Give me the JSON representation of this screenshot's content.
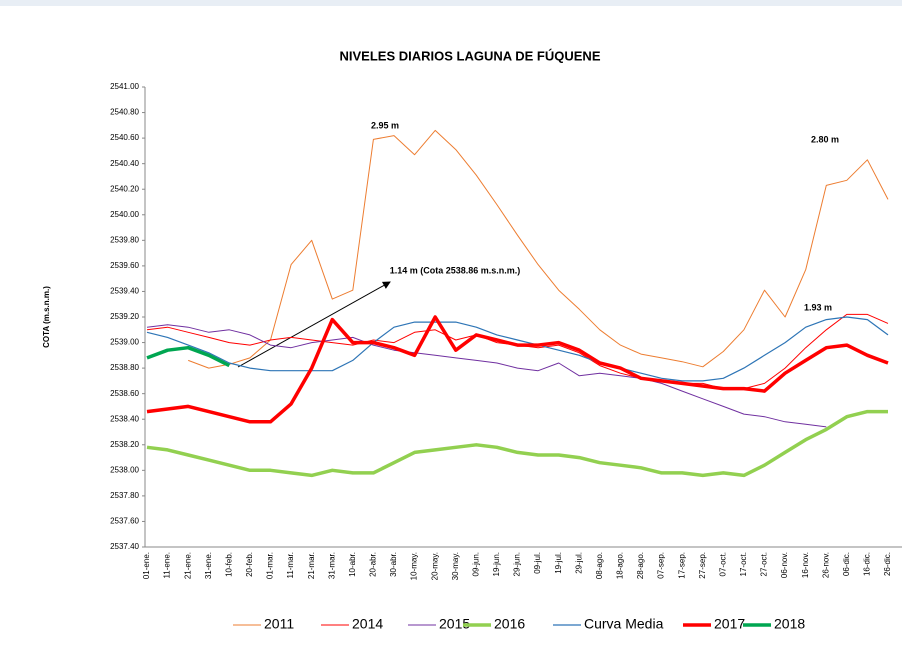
{
  "chart_data": {
    "type": "line",
    "title": "NIVELES DIARIOS LAGUNA DE FÚQUENE",
    "y_label": "COTA (m.s.n.m.)",
    "categories": [
      "01-ene.",
      "11-ene.",
      "21-ene.",
      "31-ene.",
      "10-feb.",
      "20-feb.",
      "01-mar.",
      "11-mar.",
      "21-mar.",
      "31-mar.",
      "10-abr.",
      "20-abr.",
      "30-abr.",
      "10-may.",
      "20-may.",
      "30-may.",
      "09-jun.",
      "19-jun.",
      "29-jun.",
      "09-jul.",
      "19-jul.",
      "29-jul.",
      "08-ago.",
      "18-ago.",
      "28-ago.",
      "07-sep.",
      "17-sep.",
      "27-sep.",
      "07-oct.",
      "17-oct.",
      "27-oct.",
      "06-nov.",
      "16-nov.",
      "26-nov.",
      "06-dic.",
      "16-dic.",
      "26-dic."
    ],
    "ylim": [
      2537.4,
      2541.0
    ],
    "yticks": [
      {
        "value": 2537.4,
        "label": "2537.40"
      },
      {
        "value": 2537.6,
        "label": "2537.60"
      },
      {
        "value": 2537.8,
        "label": "2537.80"
      },
      {
        "value": 2538.0,
        "label": "2538.00"
      },
      {
        "value": 2538.2,
        "label": "2538.20"
      },
      {
        "value": 2538.4,
        "label": "2538.40"
      },
      {
        "value": 2538.6,
        "label": "2538.60"
      },
      {
        "value": 2538.8,
        "label": "2538.80"
      },
      {
        "value": 2539.0,
        "label": "2539.00"
      },
      {
        "value": 2539.2,
        "label": "2539.20"
      },
      {
        "value": 2539.4,
        "label": "2539.40"
      },
      {
        "value": 2539.6,
        "label": "2539.60"
      },
      {
        "value": 2539.8,
        "label": "2539.80"
      },
      {
        "value": 2540.0,
        "label": "2540.00"
      },
      {
        "value": 2540.2,
        "label": "2540.20"
      },
      {
        "value": 2540.4,
        "label": "2540.40"
      },
      {
        "value": 2540.6,
        "label": "2540.60"
      },
      {
        "value": 2540.8,
        "label": "2540.80"
      },
      {
        "value": 2541.0,
        "label": "2541.00"
      }
    ],
    "annotations": [
      "2.95 m",
      "1.14 m (Cota 2538.86 m.s.n.m.)",
      "2.80 m",
      "1.93 m"
    ],
    "series": [
      {
        "name": "2011",
        "color": "#ED7D31",
        "values": [
          null,
          null,
          2538.86,
          2538.8,
          2538.83,
          2538.88,
          2539.02,
          2539.61,
          2539.8,
          2539.34,
          2539.41,
          2540.59,
          2540.62,
          2540.47,
          2540.66,
          2540.51,
          2540.31,
          2540.08,
          2539.84,
          2539.61,
          2539.41,
          2539.26,
          2539.1,
          2538.98,
          2538.91,
          2538.88,
          2538.85,
          2538.81,
          2538.93,
          2539.1,
          2539.41,
          2539.2,
          2539.57,
          2540.23,
          2540.27,
          2540.43,
          2540.12
        ]
      },
      {
        "name": "2014",
        "color": "#FF0000",
        "values": [
          2539.1,
          2539.12,
          2539.08,
          2539.04,
          2539.0,
          2538.98,
          2539.02,
          2539.04,
          2539.02,
          2539.0,
          2538.98,
          2539.02,
          2539.0,
          2539.08,
          2539.1,
          2539.02,
          2539.06,
          2539.0,
          2538.98,
          2538.96,
          2538.98,
          2538.92,
          2538.82,
          2538.76,
          2538.72,
          2538.7,
          2538.68,
          2538.68,
          2538.64,
          2538.64,
          2538.68,
          2538.8,
          2538.96,
          2539.1,
          2539.22,
          2539.22,
          2539.15
        ]
      },
      {
        "name": "2015",
        "color": "#7030A0",
        "values": [
          2539.12,
          2539.14,
          2539.12,
          2539.08,
          2539.1,
          2539.06,
          2538.98,
          2538.96,
          2539.0,
          2539.02,
          2539.04,
          2538.98,
          2538.94,
          2538.92,
          2538.9,
          2538.88,
          2538.86,
          2538.84,
          2538.8,
          2538.78,
          2538.84,
          2538.74,
          2538.76,
          2538.74,
          2538.72,
          2538.68,
          2538.62,
          2538.56,
          2538.5,
          2538.44,
          2538.42,
          2538.38,
          2538.36,
          2538.34,
          null,
          null,
          null
        ]
      },
      {
        "name": "2016",
        "color": "#92D050",
        "values": [
          2538.18,
          2538.16,
          2538.12,
          2538.08,
          2538.04,
          2538.0,
          2538.0,
          2537.98,
          2537.96,
          2538.0,
          2537.98,
          2537.98,
          2538.06,
          2538.14,
          2538.16,
          2538.18,
          2538.2,
          2538.18,
          2538.14,
          2538.12,
          2538.12,
          2538.1,
          2538.06,
          2538.04,
          2538.02,
          2537.98,
          2537.98,
          2537.96,
          2537.98,
          2537.96,
          2538.04,
          2538.14,
          2538.24,
          2538.32,
          2538.42,
          2538.46,
          2538.46
        ]
      },
      {
        "name": "Curva Media",
        "color": "#2E75B6",
        "values": [
          2539.08,
          2539.04,
          2538.98,
          2538.92,
          2538.84,
          2538.8,
          2538.78,
          2538.78,
          2538.78,
          2538.78,
          2538.86,
          2539.0,
          2539.12,
          2539.16,
          2539.16,
          2539.16,
          2539.12,
          2539.06,
          2539.02,
          2538.98,
          2538.94,
          2538.9,
          2538.84,
          2538.8,
          2538.76,
          2538.72,
          2538.7,
          2538.7,
          2538.72,
          2538.8,
          2538.9,
          2539.0,
          2539.12,
          2539.18,
          2539.2,
          2539.18,
          2539.06
        ]
      },
      {
        "name": "2017",
        "color": "#FF0000",
        "values": [
          2538.46,
          2538.48,
          2538.5,
          2538.46,
          2538.42,
          2538.38,
          2538.38,
          2538.52,
          2538.8,
          2539.18,
          2539.0,
          2539.0,
          2538.96,
          2538.9,
          2539.2,
          2538.94,
          2539.06,
          2539.02,
          2538.98,
          2538.98,
          2539.0,
          2538.94,
          2538.84,
          2538.8,
          2538.72,
          2538.7,
          2538.68,
          2538.66,
          2538.64,
          2538.64,
          2538.62,
          2538.76,
          2538.86,
          2538.96,
          2538.98,
          2538.9,
          2538.84
        ]
      },
      {
        "name": "2018",
        "color": "#00A651",
        "values": [
          2538.88,
          2538.94,
          2538.96,
          2538.9,
          2538.82,
          null,
          null,
          null,
          null,
          null,
          null,
          null,
          null,
          null,
          null,
          null,
          null,
          null,
          null,
          null,
          null,
          null,
          null,
          null,
          null,
          null,
          null,
          null,
          null,
          null,
          null,
          null,
          null,
          null,
          null,
          null,
          null
        ]
      }
    ]
  }
}
